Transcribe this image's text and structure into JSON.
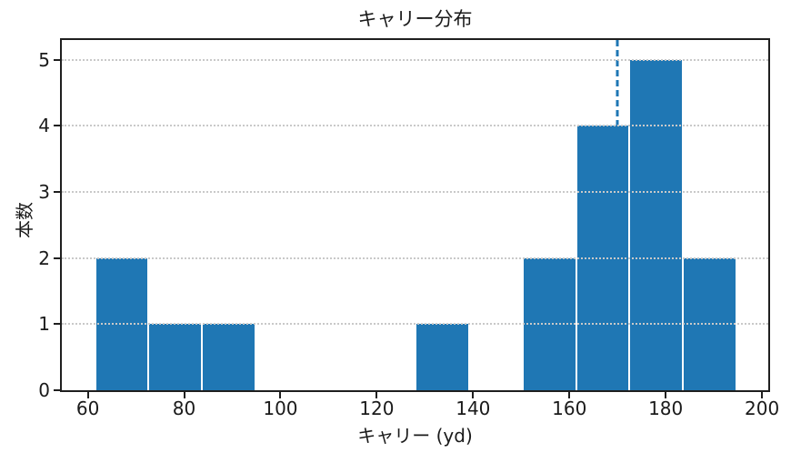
{
  "chart_data": {
    "type": "bar",
    "subtype": "histogram",
    "title": "キャリー分布",
    "xlabel": "キャリー (yd)",
    "ylabel": "本数",
    "bin_edges": [
      61.5,
      72.6,
      83.7,
      94.8,
      105.9,
      117.0,
      128.1,
      139.2,
      150.3,
      161.4,
      172.5,
      183.6,
      194.7
    ],
    "counts": [
      2,
      1,
      1,
      0,
      0,
      0,
      1,
      0,
      2,
      4,
      5,
      2
    ],
    "total_count": 18,
    "xticks": [
      60,
      80,
      100,
      120,
      140,
      160,
      180,
      200
    ],
    "yticks": [
      0,
      1,
      2,
      3,
      4,
      5
    ],
    "xlim": [
      54.6,
      201.3
    ],
    "ylim": [
      0,
      5.3
    ],
    "vline_x": 170,
    "bar_color": "#1f77b4",
    "vline_color": "#1f77b4",
    "vline_style": "dashed",
    "grid": "horizontal-dotted",
    "grid_color": "#c9c9c9",
    "spine_color": "#1f1f1f",
    "legend": "none"
  }
}
